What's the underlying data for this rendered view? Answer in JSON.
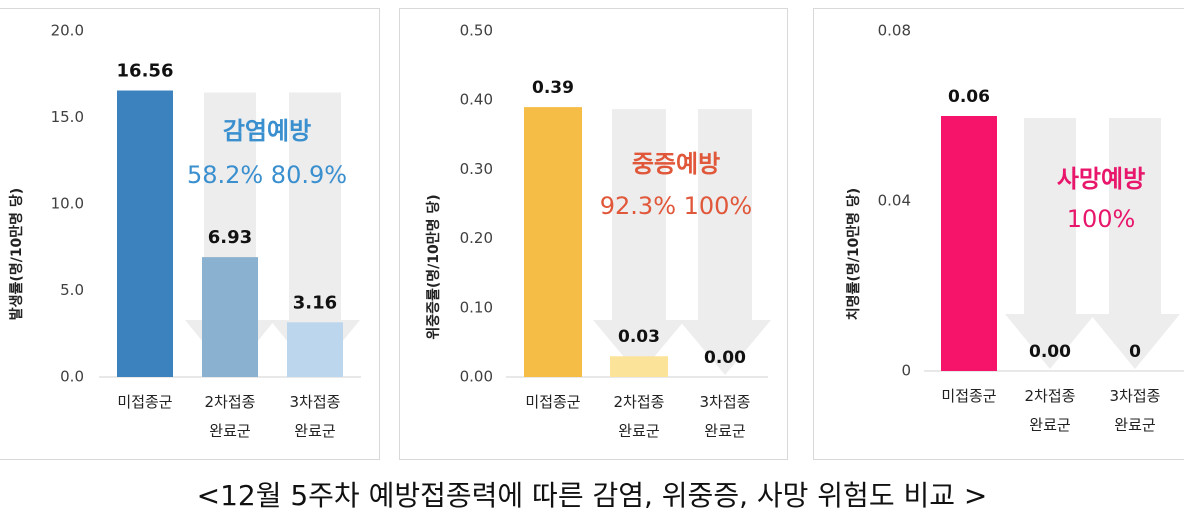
{
  "caption": "<12월 5주차 예방접종력에 따른 감염, 위중증, 사망 위험도 비교 >",
  "colors": {
    "axis_text": "#404040",
    "arrow": "#ebebeb",
    "border": "#d9d9d9"
  },
  "chart_data": [
    {
      "type": "bar",
      "ylabel": "발생률(명/10만명 당)",
      "ylim": [
        0,
        20
      ],
      "yticks": [
        "0.0",
        "5.0",
        "10.0",
        "15.0",
        "20.0"
      ],
      "categories": [
        [
          "미접종군"
        ],
        [
          "2차접종",
          "완료군"
        ],
        [
          "3차접종",
          "완료군"
        ]
      ],
      "values": [
        16.56,
        6.93,
        3.16
      ],
      "value_labels": [
        "16.56",
        "6.93",
        "3.16"
      ],
      "bar_colors": [
        "#3b82be",
        "#8bb1d0",
        "#bcd6ee"
      ],
      "annotation": {
        "title": "감염예방",
        "lines": [
          "58.2%  80.9%"
        ],
        "color": "#3a8fcf"
      }
    },
    {
      "type": "bar",
      "ylabel": "위중증률(명/10만명 당)",
      "ylim": [
        0,
        0.5
      ],
      "yticks": [
        "0.00",
        "0.10",
        "0.20",
        "0.30",
        "0.40",
        "0.50"
      ],
      "categories": [
        [
          "미접종군"
        ],
        [
          "2차접종",
          "완료군"
        ],
        [
          "3차접종",
          "완료군"
        ]
      ],
      "values": [
        0.39,
        0.03,
        0.0
      ],
      "value_labels": [
        "0.39",
        "0.03",
        "0.00"
      ],
      "bar_colors": [
        "#f5bd45",
        "#fce39a",
        "#fdf2c9"
      ],
      "annotation": {
        "title": "중증예방",
        "lines": [
          "92.3%  100%"
        ],
        "color": "#e0573a"
      }
    },
    {
      "type": "bar",
      "ylabel": "치명률(명/10만명 당)",
      "ylim": [
        0,
        0.08
      ],
      "yticks": [
        "0",
        "0.04",
        "0.08"
      ],
      "categories": [
        [
          "미접종군"
        ],
        [
          "2차접종",
          "완료군"
        ],
        [
          "3차접종",
          "완료군"
        ]
      ],
      "values": [
        0.06,
        0.0,
        0.0
      ],
      "value_labels": [
        "0.06",
        "0.00",
        "0"
      ],
      "bar_colors": [
        "#f5146a",
        "#f7b0c8",
        "#fbd5e3"
      ],
      "annotation": {
        "title": "사망예방",
        "lines": [
          "100%"
        ],
        "color": "#e8176c"
      }
    }
  ]
}
